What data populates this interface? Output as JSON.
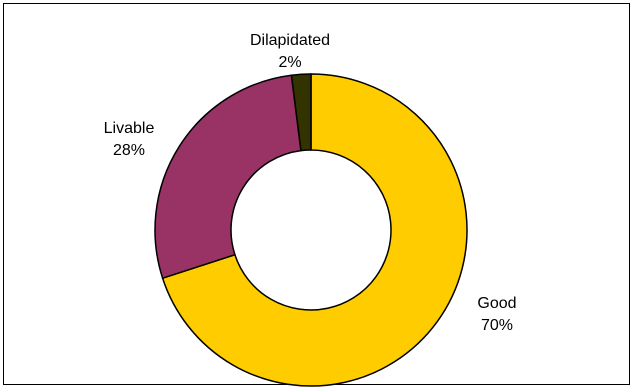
{
  "chart_data": {
    "type": "pie",
    "variant": "doughnut",
    "slices": [
      {
        "name": "Good",
        "value": 70,
        "label": "70%",
        "color": "#FFCC00"
      },
      {
        "name": "Livable",
        "value": 28,
        "label": "28%",
        "color": "#993366"
      },
      {
        "name": "Dilapidated",
        "value": 2,
        "label": "2%",
        "color": "#333300"
      }
    ],
    "start": "top",
    "direction": "clockwise",
    "legend": "none",
    "title": ""
  }
}
